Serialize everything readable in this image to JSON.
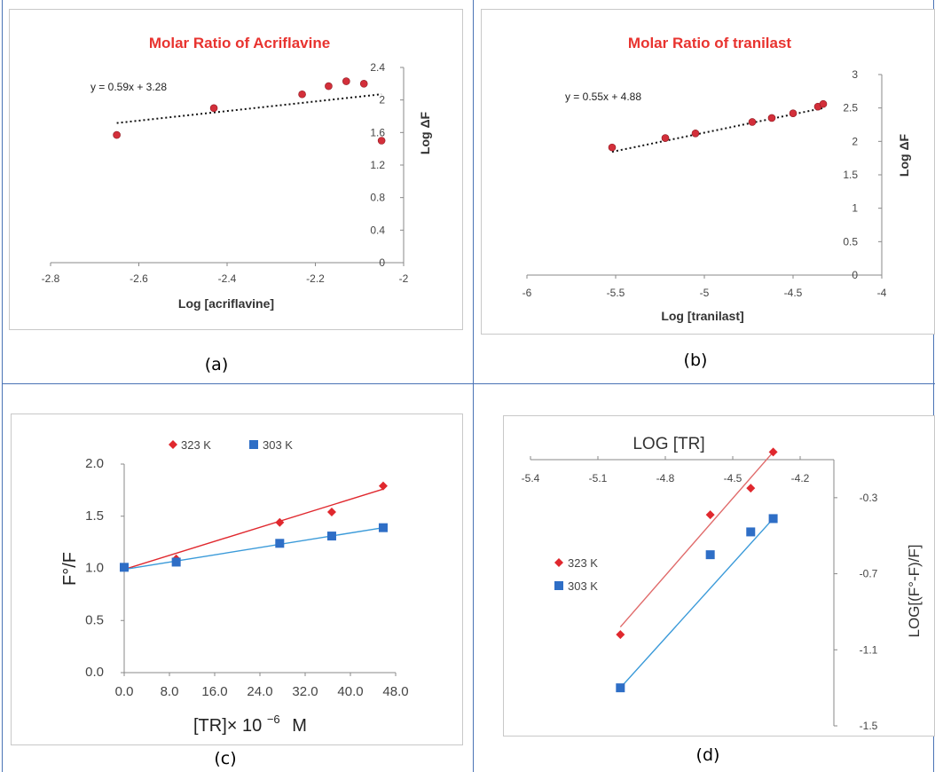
{
  "captions": [
    "(a)",
    "(b)",
    "(c)",
    "(d)"
  ],
  "chart_data": [
    {
      "type": "scatter",
      "title": "Molar Ratio of Acriflavine",
      "xlabel": "Log  [acriflavine]",
      "ylabel": "Log  ΔF",
      "xlim": [
        -2.8,
        -2.0
      ],
      "ylim": [
        0,
        2.4
      ],
      "xticks": [
        "-2.8",
        "-2.6",
        "-2.4",
        "-2.2",
        "-2"
      ],
      "xtick_values": [
        -2.8,
        -2.6,
        -2.4,
        -2.2,
        -2.0
      ],
      "yticks": [
        "0",
        "0.4",
        "0.8",
        "1.2",
        "1.6",
        "2",
        "2.4"
      ],
      "ytick_values": [
        0,
        0.4,
        0.8,
        1.2,
        1.6,
        2.0,
        2.4
      ],
      "equation": "y = 0.59x + 3.28",
      "trendline": {
        "slope": 0.59,
        "intercept": 3.28,
        "x_range": [
          -2.65,
          -2.05
        ]
      },
      "points": [
        [
          -2.65,
          1.57
        ],
        [
          -2.43,
          1.9
        ],
        [
          -2.23,
          2.07
        ],
        [
          -2.17,
          2.17
        ],
        [
          -2.13,
          2.23
        ],
        [
          -2.09,
          2.2
        ],
        [
          -2.05,
          1.5
        ]
      ],
      "grid": false,
      "colors": {
        "marker": "#d32f3a",
        "title": "#e8332f"
      }
    },
    {
      "type": "scatter",
      "title": "Molar Ratio of tranilast",
      "xlabel": "Log [tranilast]",
      "ylabel": "Log  ΔF",
      "xlim": [
        -6,
        -4
      ],
      "ylim": [
        0,
        3
      ],
      "xticks": [
        "-6",
        "-5.5",
        "-5",
        "-4.5",
        "-4"
      ],
      "xtick_values": [
        -6,
        -5.5,
        -5,
        -4.5,
        -4
      ],
      "yticks": [
        "0",
        "0.5",
        "1",
        "1.5",
        "2",
        "2.5",
        "3"
      ],
      "ytick_values": [
        0,
        0.5,
        1,
        1.5,
        2,
        2.5,
        3
      ],
      "equation": "y = 0.55x + 4.88",
      "trendline": {
        "slope": 0.55,
        "intercept": 4.88,
        "x_range": [
          -5.52,
          -4.32
        ]
      },
      "points": [
        [
          -5.52,
          1.91
        ],
        [
          -5.22,
          2.05
        ],
        [
          -5.05,
          2.12
        ],
        [
          -4.73,
          2.29
        ],
        [
          -4.62,
          2.35
        ],
        [
          -4.5,
          2.42
        ],
        [
          -4.36,
          2.52
        ],
        [
          -4.33,
          2.56
        ]
      ],
      "grid": false,
      "colors": {
        "marker": "#d32f3a",
        "title": "#e8332f"
      }
    },
    {
      "type": "line",
      "xlabel": "[TR]× 10",
      "xlabel_sup": "−6",
      "xlabel_unit": "M",
      "ylabel": "F°/F",
      "xlim": [
        0,
        48
      ],
      "ylim": [
        0,
        2.0
      ],
      "xticks": [
        "0.0",
        "8.0",
        "16.0",
        "24.0",
        "32.0",
        "40.0",
        "48.0"
      ],
      "xtick_values": [
        0,
        8,
        16,
        24,
        32,
        40,
        48
      ],
      "yticks": [
        "0.0",
        "0.5",
        "1.0",
        "1.5",
        "2.0"
      ],
      "ytick_values": [
        0,
        0.5,
        1.0,
        1.5,
        2.0
      ],
      "legend_position": "top",
      "series": [
        {
          "name": "323 K",
          "marker": "diamond",
          "color": "#e0282e",
          "x": [
            0,
            9.2,
            27.5,
            36.7,
            45.8
          ],
          "y": [
            1.01,
            1.09,
            1.44,
            1.54,
            1.79
          ],
          "fit": [
            [
              0,
              0.99
            ],
            [
              45.8,
              1.76
            ]
          ]
        },
        {
          "name": "303 K",
          "marker": "square",
          "color": "#2e6ec6",
          "line_color": "#3a9ad9",
          "x": [
            0,
            9.2,
            27.5,
            36.7,
            45.8
          ],
          "y": [
            1.01,
            1.06,
            1.24,
            1.31,
            1.39
          ],
          "fit": [
            [
              0,
              0.99
            ],
            [
              45.8,
              1.39
            ]
          ]
        }
      ],
      "grid": false
    },
    {
      "type": "line",
      "title": "LOG [TR]",
      "ylabel": "LOG[(F°-F)/F]",
      "xlim": [
        -5.4,
        -4.05
      ],
      "ylim": [
        -1.5,
        -0.1
      ],
      "xticks": [
        "-5.4",
        "-5.1",
        "-4.8",
        "-4.5",
        "-4.2"
      ],
      "xtick_values": [
        -5.4,
        -5.1,
        -4.8,
        -4.5,
        -4.2
      ],
      "yticks": [
        "-0.3",
        "-0.7",
        "-1.1",
        "-1.5"
      ],
      "ytick_values": [
        -0.3,
        -0.7,
        -1.1,
        -1.5
      ],
      "legend_position": "left",
      "series": [
        {
          "name": "323 K",
          "marker": "diamond",
          "color": "#e0282e",
          "line_color": "#e06a6a",
          "x": [
            -5.0,
            -4.6,
            -4.42,
            -4.32
          ],
          "y": [
            -1.02,
            -0.39,
            -0.25,
            -0.06
          ],
          "fit": [
            [
              -5.0,
              -0.98
            ],
            [
              -4.32,
              -0.06
            ]
          ]
        },
        {
          "name": "303 K",
          "marker": "square",
          "color": "#2e6ec6",
          "line_color": "#3a9ad9",
          "x": [
            -5.0,
            -4.6,
            -4.42,
            -4.32
          ],
          "y": [
            -1.3,
            -0.6,
            -0.48,
            -0.41
          ],
          "fit": [
            [
              -5.0,
              -1.3
            ],
            [
              -4.32,
              -0.41
            ]
          ]
        }
      ],
      "grid": false
    }
  ]
}
